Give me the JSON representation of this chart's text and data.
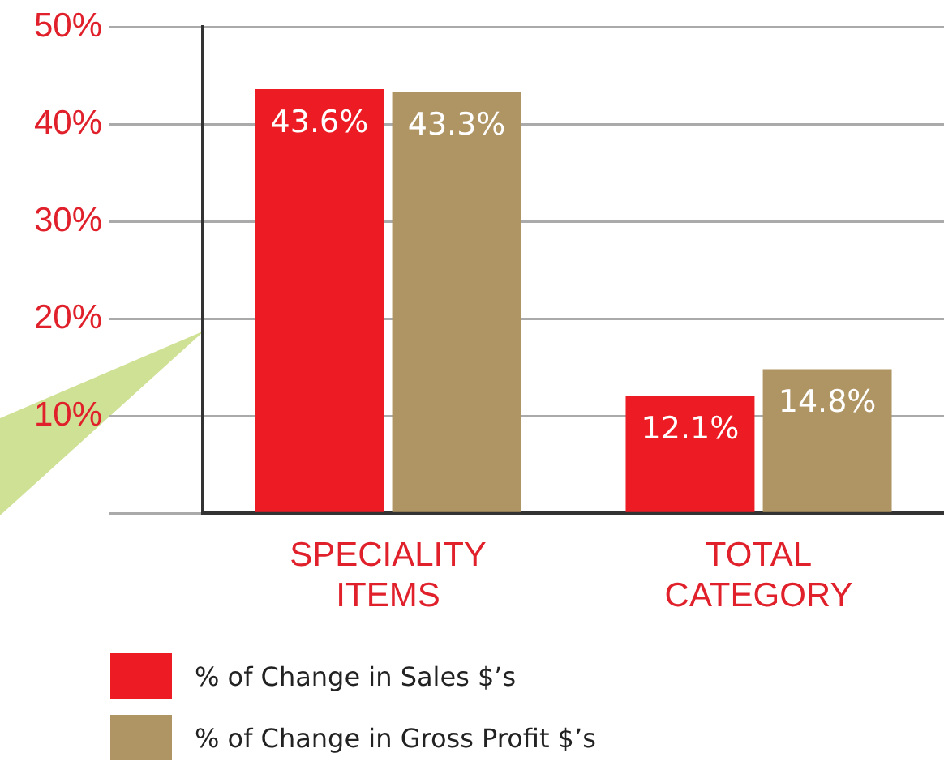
{
  "chart_data": {
    "type": "bar",
    "categories": [
      "SPECIALITY ITEMS",
      "TOTAL CATEGORY"
    ],
    "series": [
      {
        "name": "% of Change in Sales $’s",
        "color": "#ed1c24",
        "values": [
          43.6,
          12.1
        ],
        "value_labels": [
          "43.6%",
          "12.1%"
        ]
      },
      {
        "name": "% of Change in Gross Profit $’s",
        "color": "#b09564",
        "values": [
          43.3,
          14.8
        ],
        "value_labels": [
          "43.3%",
          "14.8%"
        ]
      }
    ],
    "ylim": [
      0,
      50
    ],
    "yticks": [
      {
        "value": 0,
        "label": null
      },
      {
        "value": 10,
        "label": "10%"
      },
      {
        "value": 20,
        "label": "20%"
      },
      {
        "value": 30,
        "label": "30%"
      },
      {
        "value": 40,
        "label": "40%"
      },
      {
        "value": 50,
        "label": "50%"
      }
    ],
    "grid": "y",
    "legend": "bottom left"
  }
}
